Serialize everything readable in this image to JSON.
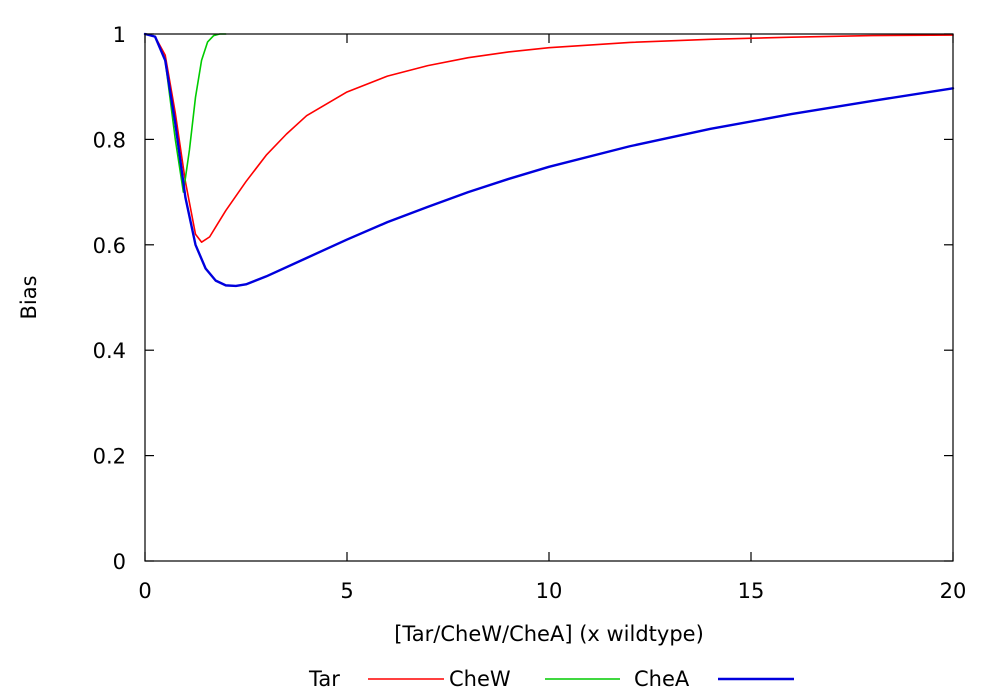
{
  "chart_data": {
    "type": "line",
    "title": "",
    "xlabel": "[Tar/CheW/CheA] (x wildtype)",
    "ylabel": "Bias",
    "xlim": [
      0,
      20
    ],
    "ylim": [
      0,
      1
    ],
    "xticks": [
      0,
      5,
      10,
      15,
      20
    ],
    "xtick_labels": [
      "0",
      "5",
      "10",
      "15",
      "20"
    ],
    "yticks": [
      0,
      0.2,
      0.4,
      0.6,
      0.8,
      1
    ],
    "ytick_labels": [
      "0",
      "0.2",
      "0.4",
      "0.6",
      "0.8",
      "1"
    ],
    "grid": false,
    "legend_position": "bottom",
    "series": [
      {
        "name": "Tar",
        "color": "#ff0000",
        "x": [
          0,
          0.25,
          0.5,
          0.75,
          1.0,
          1.25,
          1.4,
          1.6,
          1.8,
          2.0,
          2.5,
          3.0,
          3.5,
          4.0,
          5.0,
          6.0,
          7.0,
          8.0,
          9.0,
          10.0,
          12.0,
          14.0,
          16.0,
          18.0,
          20.0
        ],
        "y": [
          1.0,
          0.995,
          0.96,
          0.85,
          0.72,
          0.62,
          0.605,
          0.615,
          0.64,
          0.665,
          0.72,
          0.77,
          0.81,
          0.845,
          0.89,
          0.92,
          0.94,
          0.955,
          0.966,
          0.974,
          0.984,
          0.99,
          0.994,
          0.997,
          0.998
        ]
      },
      {
        "name": "CheW",
        "color": "#00cc00",
        "x": [
          0,
          0.25,
          0.5,
          0.75,
          0.95,
          1.1,
          1.25,
          1.4,
          1.55,
          1.7,
          1.85,
          2.0
        ],
        "y": [
          1.0,
          0.995,
          0.95,
          0.8,
          0.7,
          0.78,
          0.88,
          0.95,
          0.985,
          0.997,
          1.0,
          1.0
        ]
      },
      {
        "name": "CheA",
        "color": "#0000dd",
        "x": [
          0,
          0.25,
          0.5,
          0.75,
          1.0,
          1.25,
          1.5,
          1.75,
          2.0,
          2.25,
          2.5,
          3.0,
          4.0,
          5.0,
          6.0,
          7.0,
          8.0,
          9.0,
          10.0,
          12.0,
          14.0,
          16.0,
          18.0,
          20.0
        ],
        "y": [
          1.0,
          0.995,
          0.95,
          0.83,
          0.69,
          0.6,
          0.555,
          0.532,
          0.523,
          0.522,
          0.525,
          0.54,
          0.575,
          0.61,
          0.643,
          0.672,
          0.7,
          0.725,
          0.748,
          0.787,
          0.82,
          0.848,
          0.873,
          0.897
        ]
      }
    ]
  }
}
